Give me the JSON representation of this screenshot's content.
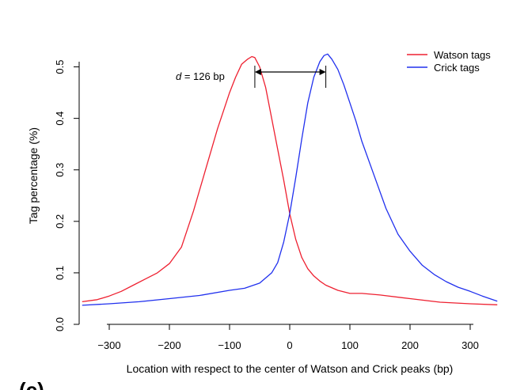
{
  "chart_data": {
    "type": "line",
    "title": "",
    "xlabel": "Location with respect to the center of Watson and Crick peaks (bp)",
    "ylabel": "Tag percentage (%)",
    "xlim": [
      -350,
      350
    ],
    "ylim": [
      0.0,
      0.55
    ],
    "x_ticks": [
      -300,
      -200,
      -100,
      0,
      100,
      200,
      300
    ],
    "x_tick_labels": [
      "−300",
      "−200",
      "−100",
      "0",
      "100",
      "200",
      "300"
    ],
    "y_ticks": [
      0.0,
      0.1,
      0.2,
      0.3,
      0.4,
      0.5
    ],
    "y_tick_labels": [
      "0.0",
      "0.1",
      "0.2",
      "0.3",
      "0.4",
      "0.5"
    ],
    "grid": false,
    "legend_position": "top-right",
    "series": [
      {
        "name": "Watson tags",
        "color": "#ee2030",
        "x": [
          -345,
          -320,
          -300,
          -280,
          -260,
          -240,
          -220,
          -200,
          -180,
          -160,
          -140,
          -120,
          -110,
          -100,
          -90,
          -80,
          -70,
          -63,
          -58,
          -50,
          -40,
          -30,
          -20,
          -10,
          0,
          10,
          20,
          30,
          40,
          50,
          60,
          80,
          100,
          120,
          150,
          200,
          250,
          300,
          345
        ],
        "values": [
          0.044,
          0.048,
          0.055,
          0.064,
          0.076,
          0.088,
          0.1,
          0.118,
          0.15,
          0.22,
          0.3,
          0.38,
          0.415,
          0.45,
          0.48,
          0.505,
          0.515,
          0.52,
          0.518,
          0.5,
          0.46,
          0.4,
          0.34,
          0.28,
          0.215,
          0.165,
          0.13,
          0.108,
          0.094,
          0.084,
          0.076,
          0.066,
          0.06,
          0.06,
          0.057,
          0.05,
          0.043,
          0.04,
          0.038
        ]
      },
      {
        "name": "Crick tags",
        "color": "#2030ee",
        "x": [
          -345,
          -300,
          -250,
          -200,
          -150,
          -100,
          -75,
          -50,
          -30,
          -20,
          -10,
          0,
          10,
          20,
          30,
          40,
          50,
          57,
          63,
          70,
          80,
          90,
          100,
          110,
          120,
          140,
          160,
          180,
          200,
          220,
          240,
          260,
          280,
          300,
          320,
          345
        ],
        "values": [
          0.037,
          0.04,
          0.044,
          0.05,
          0.056,
          0.066,
          0.07,
          0.08,
          0.1,
          0.12,
          0.16,
          0.215,
          0.285,
          0.36,
          0.43,
          0.48,
          0.51,
          0.522,
          0.525,
          0.515,
          0.495,
          0.465,
          0.43,
          0.395,
          0.355,
          0.29,
          0.225,
          0.175,
          0.142,
          0.115,
          0.097,
          0.083,
          0.072,
          0.064,
          0.055,
          0.045
        ]
      }
    ],
    "annotation": {
      "prefix": "d",
      "text": " = 126 bp",
      "from_x": -58,
      "to_x": 60
    }
  },
  "panel_label": "(c)"
}
